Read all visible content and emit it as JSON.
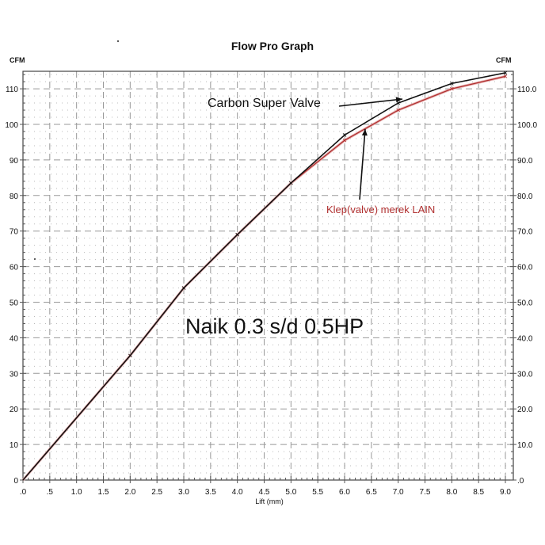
{
  "chart_data": {
    "type": "line",
    "title": "Flow Pro Graph",
    "xlabel": "Lift (mm)",
    "ylabel": "CFM",
    "ylabel_right": "CFM",
    "xlim": [
      0,
      9.0
    ],
    "ylim": [
      0,
      115
    ],
    "grid": true,
    "x_ticks": [
      ".0",
      ".5",
      "1.0",
      "1.5",
      "2.0",
      "2.5",
      "3.0",
      "3.5",
      "4.0",
      "4.5",
      "5.0",
      "5.5",
      "6.0",
      "6.5",
      "7.0",
      "7.5",
      "8.0",
      "8.5",
      "9.0"
    ],
    "y_ticks_left": [
      "0",
      "10",
      "20",
      "30",
      "40",
      "50",
      "60",
      "70",
      "80",
      "90",
      "100",
      "110"
    ],
    "y_ticks_right": [
      ".0",
      "10.0",
      "20.0",
      "30.0",
      "40.0",
      "50.0",
      "60.0",
      "70.0",
      "80.0",
      "90.0",
      "100.0",
      "110.0"
    ],
    "x": [
      0,
      2.0,
      3.0,
      4.0,
      5.0,
      6.0,
      7.0,
      8.0,
      9.0
    ],
    "series": [
      {
        "name": "Carbon Super Valve",
        "color": "#111111",
        "values": [
          0,
          35,
          54,
          69,
          83.5,
          97,
          106,
          111.5,
          114.5
        ]
      },
      {
        "name": "Klep(valve) merek LAIN",
        "color": "#b03030",
        "values": [
          0,
          35,
          54,
          69,
          83.5,
          95.5,
          104,
          110,
          113.5
        ]
      }
    ],
    "annotations": [
      {
        "text": "Carbon Super Valve",
        "points_to": "Carbon Super Valve"
      },
      {
        "text": "Klep(valve) merek LAIN",
        "points_to": "Klep(valve) merek LAIN"
      },
      {
        "text": "Naik 0.3 s/d 0.5HP"
      }
    ]
  },
  "labels": {
    "title": "Flow Pro Graph",
    "y_unit_left": "CFM",
    "y_unit_right": "CFM",
    "xlabel": "Lift (mm)",
    "ann_carbon": "Carbon Super Valve",
    "ann_lain": "Klep(valve) merek LAIN",
    "ann_naik": "Naik 0.3 s/d 0.5HP"
  }
}
